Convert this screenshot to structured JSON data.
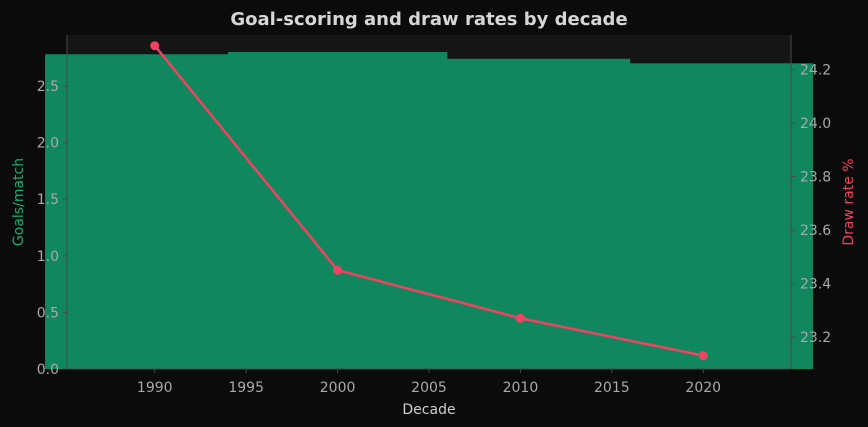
{
  "chart_data": {
    "type": "bar",
    "title": "Goal-scoring and draw rates by decade",
    "xlabel": "Decade",
    "ylabel_left": "Goals/match",
    "ylabel_right": "Draw rate %",
    "x": [
      1990,
      2000,
      2010,
      2020
    ],
    "xlim": [
      1985.2,
      2024.8
    ],
    "xticks": [
      1990,
      1995,
      2000,
      2005,
      2010,
      2015,
      2020
    ],
    "ylim_left": [
      0,
      2.95
    ],
    "yticks_left": [
      "0.0",
      "0.5",
      "1.0",
      "1.5",
      "2.0",
      "2.5"
    ],
    "ylim_right": [
      23.08,
      24.33
    ],
    "yticks_right": [
      "23.2",
      "23.4",
      "23.6",
      "23.8",
      "24.0",
      "24.2"
    ],
    "grid": false,
    "series": [
      {
        "name": "Goals/match",
        "type": "bar",
        "axis": "left",
        "color": "#10875f",
        "values": [
          2.78,
          2.8,
          2.74,
          2.7
        ]
      },
      {
        "name": "Draw rate %",
        "type": "line",
        "axis": "right",
        "color": "#f0435f",
        "values": [
          24.29,
          23.45,
          23.27,
          23.13
        ]
      }
    ]
  },
  "colors": {
    "background": "#0b0b0b",
    "plot_background": "#151515",
    "axis": "#4a4a4a",
    "text": "#a9a9a9",
    "title": "#d6d6d6",
    "left_label": "#10b07a",
    "right_label": "#f0435f"
  }
}
